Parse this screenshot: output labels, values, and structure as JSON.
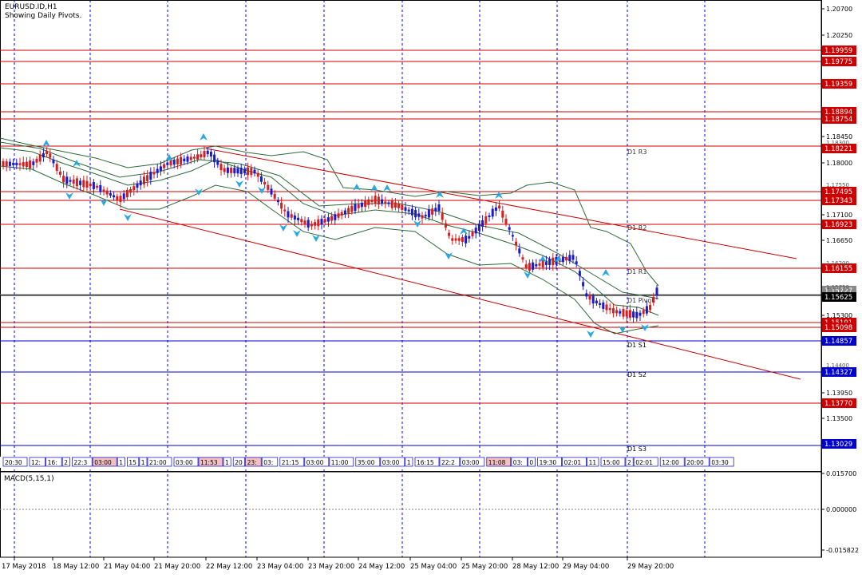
{
  "header": {
    "symbol_line": "EURUSD.ID,H1",
    "indicator_line": "Showing Daily Pivots."
  },
  "macd": {
    "label": "MACD(5,15,1)",
    "axis": [
      "0.015700",
      "0.000000",
      "-0.015822"
    ]
  },
  "colors": {
    "pivot_red": "#cc0000",
    "pivot_blue": "#0000cc",
    "bull_candle": "#1a1acc",
    "bear_candle": "#d41f1f",
    "bands": "#2e6b3a",
    "arrows": "#2aa8e0",
    "grid": "#0000ff"
  },
  "price_axis": {
    "ticks": [
      "1.20700",
      "1.20250",
      "1.18450",
      "1.18000",
      "1.17100",
      "1.16650",
      "1.15300",
      "1.13950",
      "1.13500"
    ],
    "hidden_ticks": [
      "1.17550",
      "1.16200",
      "1.15750",
      "1.14400",
      "1.18300"
    ],
    "labels": [
      {
        "text": "1.19959",
        "color": "#cc0000"
      },
      {
        "text": "1.19775",
        "color": "#cc0000"
      },
      {
        "text": "1.19359",
        "color": "#cc0000"
      },
      {
        "text": "1.18894",
        "color": "#cc0000"
      },
      {
        "text": "1.18754",
        "color": "#cc0000"
      },
      {
        "text": "1.18221",
        "color": "#cc0000"
      },
      {
        "text": "1.17495",
        "color": "#cc0000"
      },
      {
        "text": "1.17343",
        "color": "#cc0000"
      },
      {
        "text": "1.16923",
        "color": "#cc0000"
      },
      {
        "text": "1.16155",
        "color": "#cc0000"
      },
      {
        "text": "1.15727",
        "color": "#888888"
      },
      {
        "text": "1.15625",
        "color": "#000000"
      },
      {
        "text": "1.15191",
        "color": "#cc0000"
      },
      {
        "text": "1.15098",
        "color": "#cc0000"
      },
      {
        "text": "1.14857",
        "color": "#0000cc"
      },
      {
        "text": "1.14327",
        "color": "#0000cc"
      },
      {
        "text": "1.13770",
        "color": "#cc0000"
      },
      {
        "text": "1.13029",
        "color": "#0000cc"
      }
    ]
  },
  "pivot_labels": [
    "D1 R3",
    "D1 R2",
    "D1 R1",
    "D1 Pivot",
    "D1 S1",
    "D1 S2",
    "D1 S3"
  ],
  "time_labels_row": [
    "20:30",
    "12:",
    "16:",
    "2",
    "22:3",
    "03:00",
    "1",
    "15",
    "1",
    "21:00",
    "03:00",
    "11:53",
    "1",
    "20",
    "23:",
    "03:",
    "21:15",
    "03:00",
    "11:00",
    "35:00",
    "03:00",
    "1",
    "16:15",
    "22:2",
    "03:00",
    "11:08",
    "03:",
    "0",
    "19:30",
    "02:01",
    "11",
    "15:00",
    "2",
    "02:01",
    "12:00",
    "20:00",
    "03:30"
  ],
  "x_axis": {
    "labels": [
      "17 May 2018",
      "18 May 12:00",
      "21 May 04:00",
      "21 May 20:00",
      "22 May 12:00",
      "23 May 04:00",
      "23 May 20:00",
      "24 May 12:00",
      "25 May 04:00",
      "25 May 20:00",
      "28 May 12:00",
      "29 May 04:00",
      "29 May 20:00"
    ]
  }
}
